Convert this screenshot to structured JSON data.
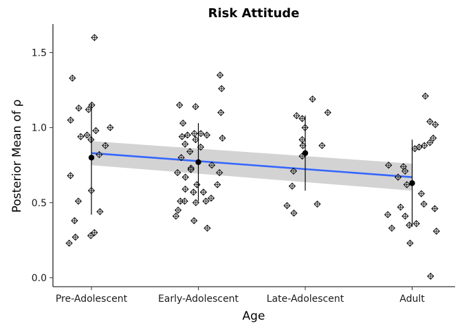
{
  "chart_data": {
    "type": "scatter",
    "title": "Risk Attitude",
    "xlabel": "Age",
    "ylabel": "Posterior Mean of ρ",
    "categories": [
      "Pre-Adolescent",
      "Early-Adolescent",
      "Late-Adolescent",
      "Adult"
    ],
    "ylim": [
      -0.06,
      1.69
    ],
    "yticks": [
      0.0,
      0.5,
      1.0,
      1.5
    ],
    "ytick_labels": [
      "0.0",
      "0.5",
      "1.0",
      "1.5"
    ],
    "grid": false,
    "legend": "none",
    "colors": {
      "points": "#000000",
      "points_fill": "#d9d9d9",
      "trend_line": "#3366ff",
      "confidence_band": "#d3d3d3"
    },
    "points": [
      {
        "x": 0.0,
        "y": 0.92
      },
      {
        "x": 0.0,
        "y": 1.6
      },
      {
        "x": 0.0,
        "y": 1.33
      },
      {
        "x": 0.0,
        "y": 1.13
      },
      {
        "x": 0.0,
        "y": 1.12
      },
      {
        "x": 0.0,
        "y": 1.15
      },
      {
        "x": 0.0,
        "y": 1.05
      },
      {
        "x": 0.0,
        "y": 1.0
      },
      {
        "x": 0.0,
        "y": 0.98
      },
      {
        "x": 0.0,
        "y": 0.95
      },
      {
        "x": 0.0,
        "y": 0.94
      },
      {
        "x": 0.0,
        "y": 0.88
      },
      {
        "x": 0.0,
        "y": 0.82
      },
      {
        "x": 0.0,
        "y": 0.68
      },
      {
        "x": 0.0,
        "y": 0.58
      },
      {
        "x": 0.0,
        "y": 0.51
      },
      {
        "x": 0.0,
        "y": 0.44
      },
      {
        "x": 0.0,
        "y": 0.38
      },
      {
        "x": 0.0,
        "y": 0.3
      },
      {
        "x": 0.0,
        "y": 0.28
      },
      {
        "x": 0.0,
        "y": 0.27
      },
      {
        "x": 0.0,
        "y": 0.23
      },
      {
        "x": 1.0,
        "y": 1.35
      },
      {
        "x": 1.0,
        "y": 1.26
      },
      {
        "x": 1.0,
        "y": 1.15
      },
      {
        "x": 1.0,
        "y": 1.14
      },
      {
        "x": 1.0,
        "y": 1.1
      },
      {
        "x": 1.0,
        "y": 1.03
      },
      {
        "x": 1.0,
        "y": 0.96
      },
      {
        "x": 1.0,
        "y": 0.96
      },
      {
        "x": 1.0,
        "y": 0.95
      },
      {
        "x": 1.0,
        "y": 0.95
      },
      {
        "x": 1.0,
        "y": 0.94
      },
      {
        "x": 1.0,
        "y": 0.93
      },
      {
        "x": 1.0,
        "y": 0.92
      },
      {
        "x": 1.0,
        "y": 0.89
      },
      {
        "x": 1.0,
        "y": 0.87
      },
      {
        "x": 1.0,
        "y": 0.84
      },
      {
        "x": 1.0,
        "y": 0.8
      },
      {
        "x": 1.0,
        "y": 0.75
      },
      {
        "x": 1.0,
        "y": 0.73
      },
      {
        "x": 1.0,
        "y": 0.72
      },
      {
        "x": 1.0,
        "y": 0.7
      },
      {
        "x": 1.0,
        "y": 0.7
      },
      {
        "x": 1.0,
        "y": 0.67
      },
      {
        "x": 1.0,
        "y": 0.62
      },
      {
        "x": 1.0,
        "y": 0.62
      },
      {
        "x": 1.0,
        "y": 0.59
      },
      {
        "x": 1.0,
        "y": 0.57
      },
      {
        "x": 1.0,
        "y": 0.57
      },
      {
        "x": 1.0,
        "y": 0.53
      },
      {
        "x": 1.0,
        "y": 0.51
      },
      {
        "x": 1.0,
        "y": 0.51
      },
      {
        "x": 1.0,
        "y": 0.51
      },
      {
        "x": 1.0,
        "y": 0.5
      },
      {
        "x": 1.0,
        "y": 0.45
      },
      {
        "x": 1.0,
        "y": 0.41
      },
      {
        "x": 1.0,
        "y": 0.38
      },
      {
        "x": 1.0,
        "y": 0.33
      },
      {
        "x": 2.0,
        "y": 1.19
      },
      {
        "x": 2.0,
        "y": 1.1
      },
      {
        "x": 2.0,
        "y": 1.08
      },
      {
        "x": 2.0,
        "y": 1.06
      },
      {
        "x": 2.0,
        "y": 1.0
      },
      {
        "x": 2.0,
        "y": 0.92
      },
      {
        "x": 2.0,
        "y": 0.88
      },
      {
        "x": 2.0,
        "y": 0.88
      },
      {
        "x": 2.0,
        "y": 0.81
      },
      {
        "x": 2.0,
        "y": 0.71
      },
      {
        "x": 2.0,
        "y": 0.61
      },
      {
        "x": 2.0,
        "y": 0.49
      },
      {
        "x": 2.0,
        "y": 0.48
      },
      {
        "x": 2.0,
        "y": 0.43
      },
      {
        "x": 3.0,
        "y": 1.21
      },
      {
        "x": 3.0,
        "y": 1.04
      },
      {
        "x": 3.0,
        "y": 1.02
      },
      {
        "x": 3.0,
        "y": 0.93
      },
      {
        "x": 3.0,
        "y": 0.9
      },
      {
        "x": 3.0,
        "y": 0.88
      },
      {
        "x": 3.0,
        "y": 0.87
      },
      {
        "x": 3.0,
        "y": 0.86
      },
      {
        "x": 3.0,
        "y": 0.75
      },
      {
        "x": 3.0,
        "y": 0.74
      },
      {
        "x": 3.0,
        "y": 0.71
      },
      {
        "x": 3.0,
        "y": 0.67
      },
      {
        "x": 3.0,
        "y": 0.62
      },
      {
        "x": 3.0,
        "y": 0.56
      },
      {
        "x": 3.0,
        "y": 0.49
      },
      {
        "x": 3.0,
        "y": 0.47
      },
      {
        "x": 3.0,
        "y": 0.46
      },
      {
        "x": 3.0,
        "y": 0.42
      },
      {
        "x": 3.0,
        "y": 0.41
      },
      {
        "x": 3.0,
        "y": 0.36
      },
      {
        "x": 3.0,
        "y": 0.35
      },
      {
        "x": 3.0,
        "y": 0.33
      },
      {
        "x": 3.0,
        "y": 0.31
      },
      {
        "x": 3.0,
        "y": 0.23
      },
      {
        "x": 3.0,
        "y": 0.01
      }
    ],
    "group_summary": [
      {
        "category": "Pre-Adolescent",
        "mean": 0.8,
        "low": 0.42,
        "high": 1.16
      },
      {
        "category": "Early-Adolescent",
        "mean": 0.77,
        "low": 0.51,
        "high": 1.03
      },
      {
        "category": "Late-Adolescent",
        "mean": 0.83,
        "low": 0.58,
        "high": 1.08
      },
      {
        "category": "Adult",
        "mean": 0.63,
        "low": 0.34,
        "high": 0.92
      }
    ],
    "trend": {
      "x": [
        0,
        3
      ],
      "y": [
        0.83,
        0.67
      ],
      "band_low": [
        0.75,
        0.58
      ],
      "band_high": [
        0.91,
        0.76
      ]
    }
  }
}
